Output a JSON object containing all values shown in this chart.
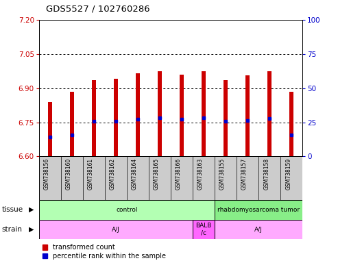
{
  "title": "GDS5527 / 102760286",
  "samples": [
    "GSM738156",
    "GSM738160",
    "GSM738161",
    "GSM738162",
    "GSM738164",
    "GSM738165",
    "GSM738166",
    "GSM738163",
    "GSM738155",
    "GSM738157",
    "GSM738158",
    "GSM738159"
  ],
  "bar_bottom": 6.6,
  "bar_tops": [
    6.84,
    6.885,
    6.935,
    6.94,
    6.965,
    6.975,
    6.96,
    6.975,
    6.935,
    6.955,
    6.975,
    6.885
  ],
  "blue_marker_vals": [
    6.685,
    6.695,
    6.755,
    6.755,
    6.765,
    6.77,
    6.765,
    6.77,
    6.755,
    6.758,
    6.768,
    6.695
  ],
  "ylim_left": [
    6.6,
    7.2
  ],
  "ylim_right": [
    0,
    100
  ],
  "yticks_left": [
    6.6,
    6.75,
    6.9,
    7.05,
    7.2
  ],
  "yticks_right": [
    0,
    25,
    50,
    75,
    100
  ],
  "grid_vals": [
    6.75,
    6.9,
    7.05
  ],
  "bar_color": "#cc0000",
  "blue_color": "#0000cc",
  "bar_width": 0.18,
  "tissue_groups": [
    {
      "label": "control",
      "start": 0,
      "end": 7,
      "color": "#b3ffb3"
    },
    {
      "label": "rhabdomyosarcoma tumor",
      "start": 8,
      "end": 11,
      "color": "#88ee88"
    }
  ],
  "strain_groups": [
    {
      "label": "A/J",
      "start": 0,
      "end": 6,
      "color": "#ffaaff"
    },
    {
      "label": "BALB\n/c",
      "start": 7,
      "end": 7,
      "color": "#ff66ff"
    },
    {
      "label": "A/J",
      "start": 8,
      "end": 11,
      "color": "#ffaaff"
    }
  ],
  "ylabel_left_color": "#cc0000",
  "ylabel_right_color": "#0000cc",
  "xlabel_bg": "#cccccc",
  "spine_color": "#000000"
}
